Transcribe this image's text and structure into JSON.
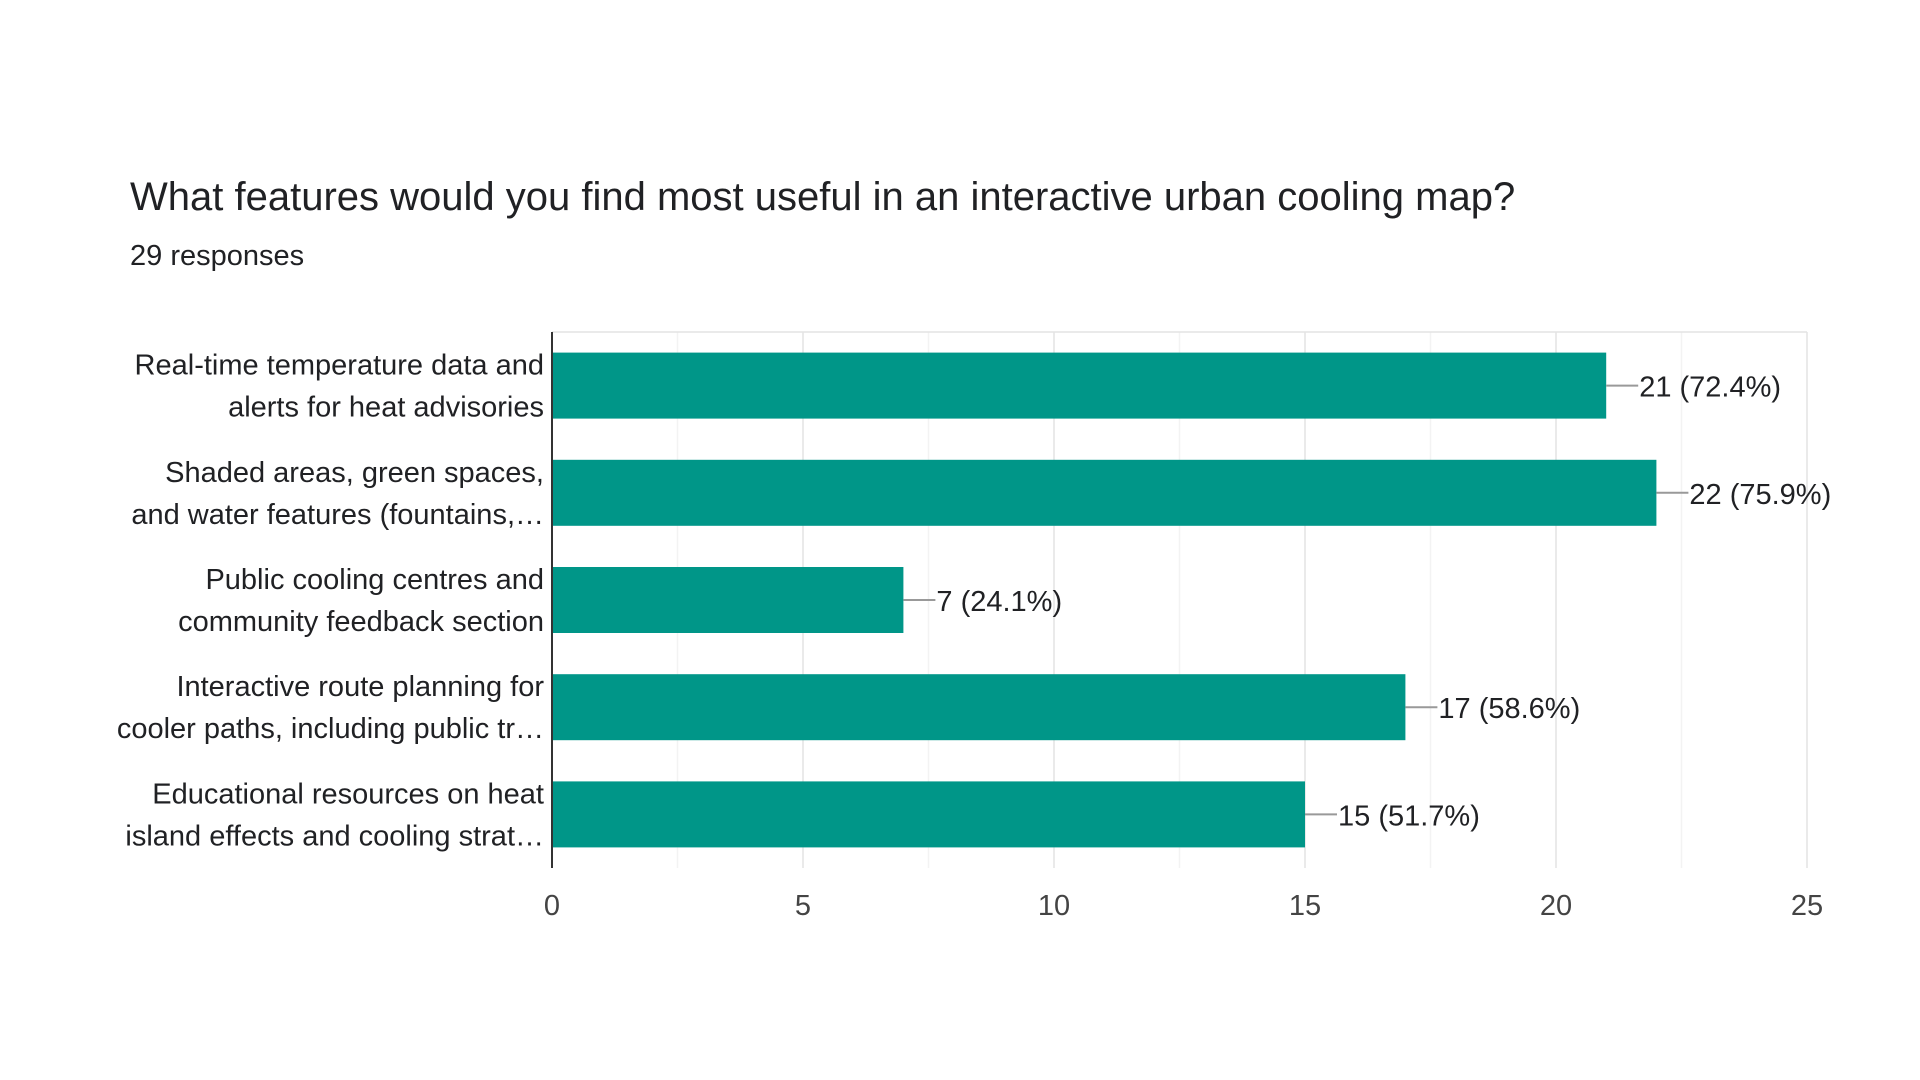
{
  "chart_data": {
    "type": "bar",
    "orientation": "horizontal",
    "title": "What features would you find most useful in an interactive urban cooling map?",
    "subtitle": "29 responses",
    "categories": [
      [
        "Real-time temperature data and",
        "alerts for heat advisories"
      ],
      [
        "Shaded areas, green spaces,",
        "and water features (fountains,…"
      ],
      [
        "Public cooling centres and",
        "community feedback section"
      ],
      [
        "Interactive route planning for",
        "cooler paths, including public tr…"
      ],
      [
        "Educational resources on heat",
        "island effects and cooling strat…"
      ]
    ],
    "values": [
      21,
      22,
      7,
      17,
      15
    ],
    "data_labels": [
      "21 (72.4%)",
      "22 (75.9%)",
      "7 (24.1%)",
      "17 (58.6%)",
      "15 (51.7%)"
    ],
    "xlim": [
      0,
      25
    ],
    "xticks": [
      0,
      5,
      10,
      15,
      20,
      25
    ],
    "minor_gridlines": true,
    "grid": true,
    "bar_color": "#009688",
    "xlabel": "",
    "ylabel": ""
  }
}
